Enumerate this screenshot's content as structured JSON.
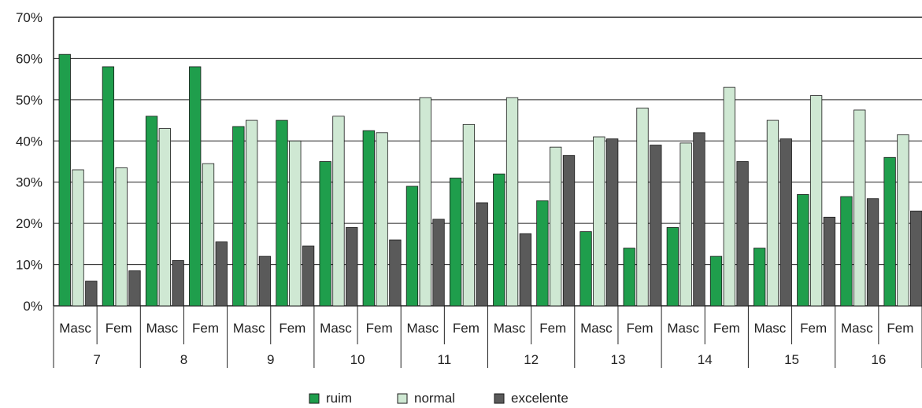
{
  "chart_data": {
    "type": "bar",
    "title": "",
    "xlabel": "",
    "ylabel": "",
    "ylim": [
      0,
      70
    ],
    "yticks": [
      "0%",
      "10%",
      "20%",
      "30%",
      "40%",
      "50%",
      "60%",
      "70%"
    ],
    "grid": true,
    "legend_position": "bottom-center",
    "groups": [
      "7",
      "8",
      "9",
      "10",
      "11",
      "12",
      "13",
      "14",
      "15",
      "16"
    ],
    "subgroups": [
      "Masc",
      "Fem"
    ],
    "categories": [
      "7 Masc",
      "7 Fem",
      "8 Masc",
      "8 Fem",
      "9 Masc",
      "9 Fem",
      "10 Masc",
      "10 Fem",
      "11 Masc",
      "11 Fem",
      "12 Masc",
      "12 Fem",
      "13 Masc",
      "13 Fem",
      "14 Masc",
      "14 Fem",
      "15 Masc",
      "15 Fem",
      "16 Masc",
      "16 Fem"
    ],
    "series": [
      {
        "name": "ruim",
        "color": "#1f9e4c",
        "values": [
          61,
          58,
          46,
          58,
          43.5,
          45,
          35,
          42.5,
          29,
          31,
          32,
          25.5,
          18,
          14,
          19,
          12,
          14,
          27,
          26.5,
          36
        ]
      },
      {
        "name": "normal",
        "color": "#cfe8d3",
        "values": [
          33,
          33.5,
          43,
          34.5,
          45,
          40,
          46,
          42,
          50.5,
          44,
          50.5,
          38.5,
          41,
          48,
          39.5,
          53,
          45,
          51,
          47.5,
          41.5
        ]
      },
      {
        "name": "excelente",
        "color": "#5a5a5a",
        "values": [
          6,
          8.5,
          11,
          15.5,
          12,
          14.5,
          19,
          16,
          21,
          25,
          17.5,
          36.5,
          40.5,
          39,
          42,
          35,
          40.5,
          21.5,
          26,
          23
        ]
      }
    ]
  }
}
